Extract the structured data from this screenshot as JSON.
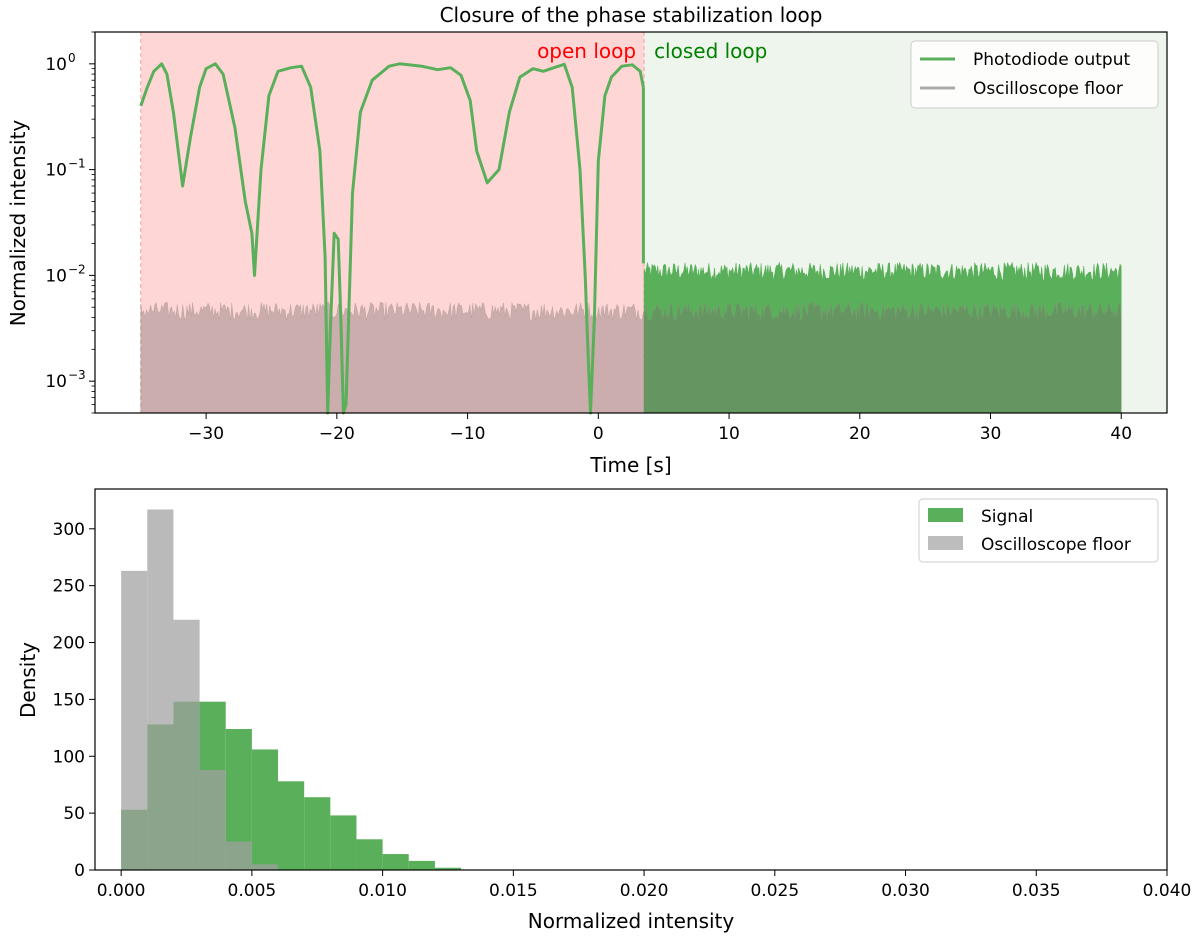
{
  "chart_data": [
    {
      "type": "line",
      "title": "Closure of the phase stabilization loop",
      "xlabel": "Time [s]",
      "ylabel": "Normalized intensity",
      "yscale": "log",
      "xlim": [
        -38.5,
        43.5
      ],
      "ylim": [
        0.0005,
        2.0
      ],
      "xticks": [
        -30,
        -20,
        -10,
        0,
        10,
        20,
        30,
        40
      ],
      "xtick_labels": [
        "−30",
        "−20",
        "−10",
        "0",
        "10",
        "20",
        "30",
        "40"
      ],
      "yticks": [
        0.001,
        0.01,
        0.1,
        1
      ],
      "ytick_labels": [
        {
          "base": "10",
          "exp": "−3"
        },
        {
          "base": "10",
          "exp": "−2"
        },
        {
          "base": "10",
          "exp": "−1"
        },
        {
          "base": "10",
          "exp": "0"
        }
      ],
      "regions": [
        {
          "label": "open loop",
          "x": [
            -35,
            3.5
          ],
          "color": "#ff0000"
        },
        {
          "label": "closed loop",
          "x": [
            3.5,
            43.5
          ],
          "color": "#008000"
        }
      ],
      "legend": {
        "position": "top-right"
      },
      "grid": false,
      "series": [
        {
          "name": "Photodiode output",
          "color": "#5aaf5a",
          "open_loop_points": [
            [
              -35,
              0.4
            ],
            [
              -34.5,
              0.6
            ],
            [
              -34,
              0.85
            ],
            [
              -33.4,
              1.0
            ],
            [
              -33,
              0.8
            ],
            [
              -32.5,
              0.35
            ],
            [
              -31.8,
              0.07
            ],
            [
              -31.2,
              0.2
            ],
            [
              -30.5,
              0.6
            ],
            [
              -30,
              0.9
            ],
            [
              -29.3,
              1.0
            ],
            [
              -28.7,
              0.8
            ],
            [
              -27.8,
              0.25
            ],
            [
              -27,
              0.05
            ],
            [
              -26.5,
              0.025
            ],
            [
              -26.3,
              0.01
            ],
            [
              -25.8,
              0.1
            ],
            [
              -25.2,
              0.5
            ],
            [
              -24.5,
              0.85
            ],
            [
              -23.5,
              0.92
            ],
            [
              -22.7,
              0.95
            ],
            [
              -22,
              0.6
            ],
            [
              -21.3,
              0.15
            ],
            [
              -20.9,
              0.015
            ],
            [
              -20.7,
              0.0005
            ],
            [
              -20.5,
              0.003
            ],
            [
              -20.2,
              0.025
            ],
            [
              -19.9,
              0.022
            ],
            [
              -19.7,
              0.004
            ],
            [
              -19.5,
              0.0005
            ],
            [
              -19.3,
              0.0006
            ],
            [
              -18.8,
              0.06
            ],
            [
              -18.2,
              0.35
            ],
            [
              -17.3,
              0.7
            ],
            [
              -16,
              0.95
            ],
            [
              -15.2,
              1.0
            ],
            [
              -13.5,
              0.95
            ],
            [
              -12.3,
              0.88
            ],
            [
              -11.3,
              0.92
            ],
            [
              -10.5,
              0.78
            ],
            [
              -9.8,
              0.45
            ],
            [
              -9.3,
              0.15
            ],
            [
              -8.5,
              0.075
            ],
            [
              -7.6,
              0.1
            ],
            [
              -6.8,
              0.35
            ],
            [
              -6,
              0.75
            ],
            [
              -5,
              0.9
            ],
            [
              -4.2,
              0.85
            ],
            [
              -3.4,
              0.92
            ],
            [
              -2.6,
              0.99
            ],
            [
              -2,
              0.6
            ],
            [
              -1.4,
              0.1
            ],
            [
              -1,
              0.01
            ],
            [
              -0.8,
              0.002
            ],
            [
              -0.6,
              0.0005
            ],
            [
              -0.3,
              0.004
            ],
            [
              0,
              0.12
            ],
            [
              0.5,
              0.5
            ],
            [
              1,
              0.75
            ],
            [
              1.8,
              0.95
            ],
            [
              2.6,
              0.98
            ],
            [
              3.2,
              0.85
            ],
            [
              3.45,
              0.6
            ]
          ],
          "closed_loop_band": {
            "x": [
              3.5,
              40
            ],
            "y_max_typical": 0.013
          }
        },
        {
          "name": "Oscilloscope floor",
          "color": "#aaaaaa",
          "band": {
            "x": [
              -35,
              40
            ],
            "y_max_typical": 0.0055
          }
        }
      ]
    },
    {
      "type": "bar",
      "xlabel": "Normalized intensity",
      "ylabel": "Density",
      "xlim": [
        -0.001,
        0.04
      ],
      "ylim": [
        0,
        335
      ],
      "xticks": [
        0.0,
        0.005,
        0.01,
        0.015,
        0.02,
        0.025,
        0.03,
        0.035,
        0.04
      ],
      "xtick_labels": [
        "0.000",
        "0.005",
        "0.010",
        "0.015",
        "0.020",
        "0.025",
        "0.030",
        "0.035",
        "0.040"
      ],
      "yticks": [
        0,
        50,
        100,
        150,
        200,
        250,
        300
      ],
      "bin_edges": [
        0,
        0.001,
        0.002,
        0.003,
        0.004,
        0.005,
        0.006,
        0.007,
        0.008,
        0.009,
        0.01,
        0.011,
        0.012,
        0.013,
        0.014
      ],
      "legend": {
        "position": "top-right"
      },
      "grid": false,
      "series": [
        {
          "name": "Signal",
          "color": "#5aaf5a",
          "values": [
            53,
            128,
            148,
            148,
            124,
            106,
            78,
            64,
            48,
            27,
            14,
            8,
            2,
            0
          ]
        },
        {
          "name": "Oscilloscope floor",
          "color": "#bdbdbd",
          "values": [
            263,
            317,
            220,
            88,
            25,
            5,
            0,
            0,
            0,
            0,
            0,
            0,
            0,
            0
          ]
        }
      ]
    }
  ]
}
